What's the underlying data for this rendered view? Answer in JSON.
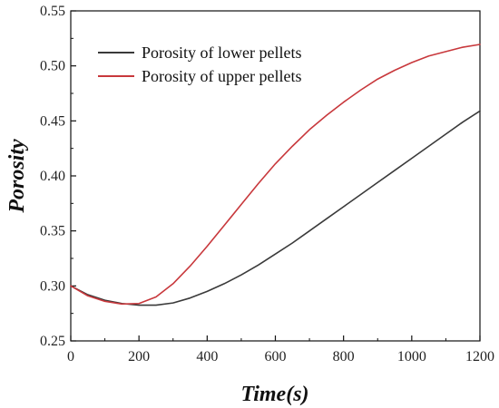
{
  "chart_data": {
    "type": "line",
    "xlabel": "Time(s)",
    "ylabel": "Porosity",
    "xlim": [
      0,
      1200
    ],
    "ylim": [
      0.25,
      0.55
    ],
    "x_ticks": [
      "0",
      "200",
      "400",
      "600",
      "800",
      "1000",
      "1200"
    ],
    "y_ticks": [
      "0.25",
      "0.30",
      "0.35",
      "0.40",
      "0.45",
      "0.50",
      "0.55"
    ],
    "grid": false,
    "legend_position": "top-left",
    "series": [
      {
        "name": "Porosity of lower pellets",
        "color": "#3a3a3a",
        "points": [
          [
            0,
            0.3
          ],
          [
            50,
            0.292
          ],
          [
            100,
            0.287
          ],
          [
            150,
            0.284
          ],
          [
            200,
            0.2825
          ],
          [
            250,
            0.2825
          ],
          [
            300,
            0.2845
          ],
          [
            350,
            0.289
          ],
          [
            400,
            0.295
          ],
          [
            450,
            0.302
          ],
          [
            500,
            0.31
          ],
          [
            550,
            0.319
          ],
          [
            600,
            0.329
          ],
          [
            650,
            0.339
          ],
          [
            700,
            0.35
          ],
          [
            750,
            0.361
          ],
          [
            800,
            0.372
          ],
          [
            850,
            0.383
          ],
          [
            900,
            0.394
          ],
          [
            950,
            0.405
          ],
          [
            1000,
            0.416
          ],
          [
            1050,
            0.427
          ],
          [
            1100,
            0.438
          ],
          [
            1150,
            0.449
          ],
          [
            1200,
            0.459
          ]
        ]
      },
      {
        "name": "Porosity of upper pellets",
        "color": "#c8383c",
        "points": [
          [
            0,
            0.3
          ],
          [
            50,
            0.291
          ],
          [
            100,
            0.286
          ],
          [
            150,
            0.2835
          ],
          [
            200,
            0.284
          ],
          [
            250,
            0.29
          ],
          [
            300,
            0.302
          ],
          [
            350,
            0.318
          ],
          [
            400,
            0.336
          ],
          [
            450,
            0.355
          ],
          [
            500,
            0.374
          ],
          [
            550,
            0.393
          ],
          [
            600,
            0.411
          ],
          [
            650,
            0.427
          ],
          [
            700,
            0.442
          ],
          [
            750,
            0.455
          ],
          [
            800,
            0.467
          ],
          [
            850,
            0.478
          ],
          [
            900,
            0.488
          ],
          [
            950,
            0.496
          ],
          [
            1000,
            0.503
          ],
          [
            1050,
            0.509
          ],
          [
            1100,
            0.513
          ],
          [
            1150,
            0.517
          ],
          [
            1200,
            0.5195
          ]
        ]
      }
    ]
  }
}
